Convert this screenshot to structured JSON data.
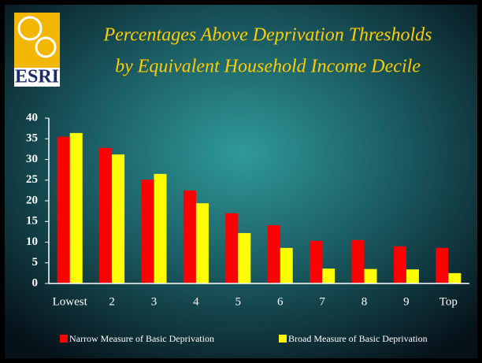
{
  "chart_data": {
    "type": "bar",
    "logo": "ESRI",
    "title": [
      "Percentages Above Deprivation Thresholds",
      "by Equivalent Household Income Decile"
    ],
    "categories": [
      "Lowest",
      "2",
      "3",
      "4",
      "5",
      "6",
      "7",
      "8",
      "9",
      "Top"
    ],
    "series": [
      {
        "name": "Narrow Measure of Basic Deprivation",
        "color": "#ff0000",
        "values": [
          35.5,
          32.8,
          25.1,
          22.5,
          17,
          14.1,
          10.3,
          10.5,
          9,
          8.6
        ]
      },
      {
        "name": "Broad Measure of Basic Deprivation",
        "color": "#ffff00",
        "values": [
          36.4,
          31.2,
          26.5,
          19.4,
          12.2,
          8.6,
          3.6,
          3.5,
          3.4,
          2.5
        ]
      }
    ],
    "ylim": [
      0,
      40
    ],
    "yticks": [
      0,
      5,
      10,
      15,
      20,
      25,
      30,
      35,
      40
    ],
    "legend": "bottom"
  }
}
